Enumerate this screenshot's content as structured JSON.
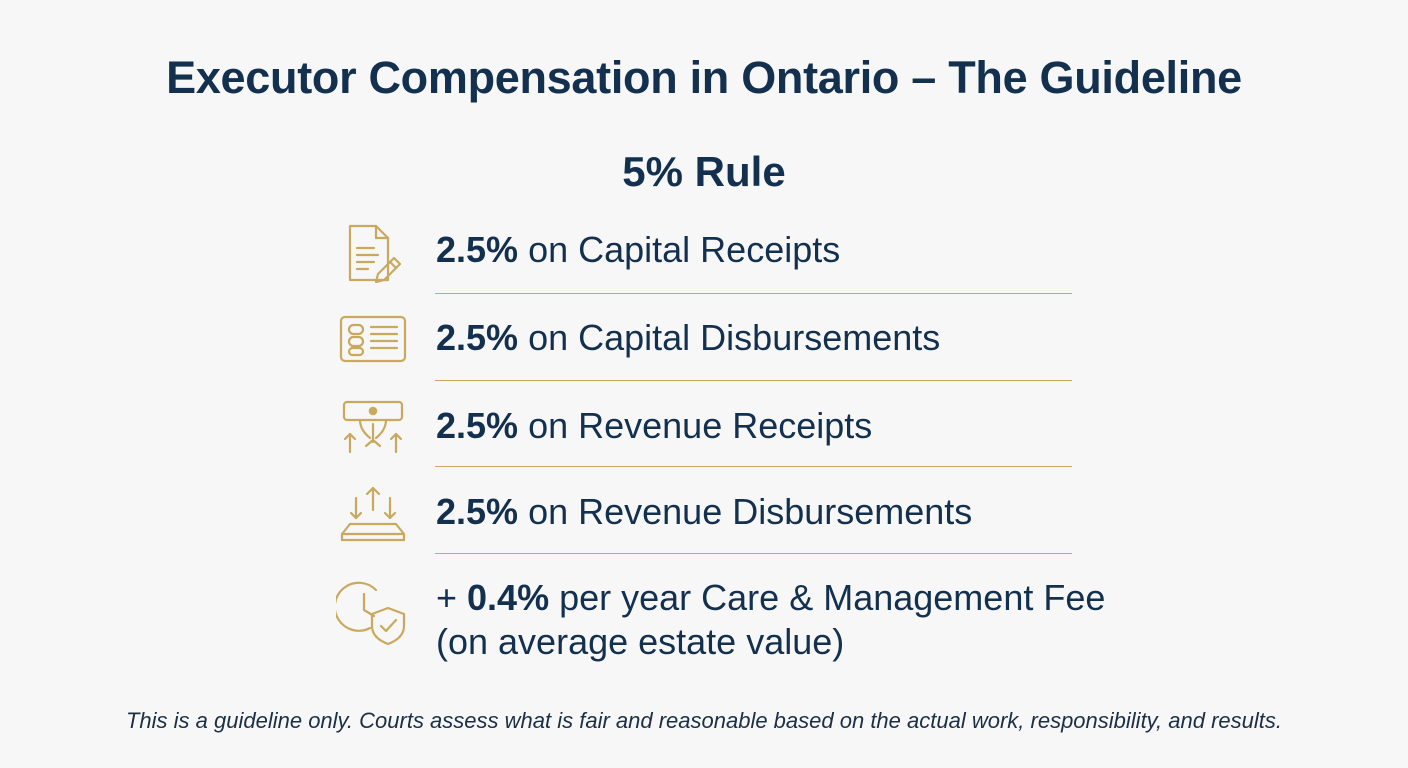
{
  "title": "Executor Compensation in Ontario – The Guideline",
  "subtitle": "5% Rule",
  "items": [
    {
      "pct": "2.5%",
      "label": " on Capital Receipts",
      "icon": "document-pen-icon"
    },
    {
      "pct": "2.5%",
      "label": " on Capital Disbursements",
      "icon": "ledger-coins-icon"
    },
    {
      "pct": "2.5%",
      "label": " on Revenue Receipts",
      "icon": "bill-arrows-up-icon"
    },
    {
      "pct": "2.5%",
      "label": " on Revenue Disbursements",
      "icon": "tray-arrows-icon"
    }
  ],
  "fee": {
    "prefix": "+ ",
    "pct": "0.4%",
    "label": " per year Care & Management Fee",
    "line2": "(on average estate value)",
    "icon": "clock-shield-icon"
  },
  "footnote": "This is a guideline only. Courts assess what is fair and reasonable based on the actual work, responsibility, and results.",
  "colors": {
    "navy": "#13304f",
    "gold": "#c9a95e",
    "background": "#f7f7f7"
  }
}
